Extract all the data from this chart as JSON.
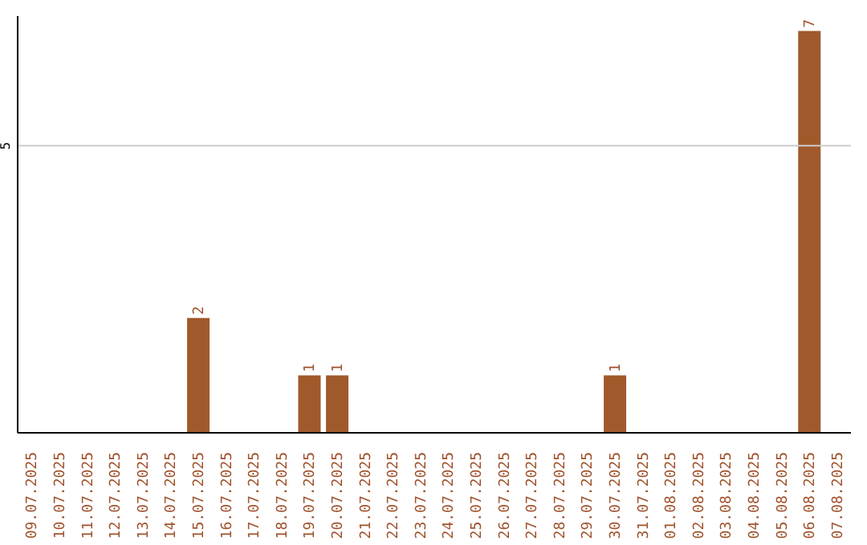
{
  "chart_data": {
    "type": "bar",
    "categories": [
      "09.07.2025",
      "10.07.2025",
      "11.07.2025",
      "12.07.2025",
      "13.07.2025",
      "14.07.2025",
      "15.07.2025",
      "16.07.2025",
      "17.07.2025",
      "18.07.2025",
      "19.07.2025",
      "20.07.2025",
      "21.07.2025",
      "22.07.2025",
      "23.07.2025",
      "24.07.2025",
      "25.07.2025",
      "26.07.2025",
      "27.07.2025",
      "28.07.2025",
      "29.07.2025",
      "30.07.2025",
      "31.07.2025",
      "01.08.2025",
      "02.08.2025",
      "03.08.2025",
      "04.08.2025",
      "05.08.2025",
      "06.08.2025",
      "07.08.2025"
    ],
    "values": [
      0,
      0,
      0,
      0,
      0,
      0,
      2,
      0,
      0,
      0,
      1,
      1,
      0,
      0,
      0,
      0,
      0,
      0,
      0,
      0,
      0,
      1,
      0,
      0,
      0,
      0,
      0,
      0,
      7,
      0
    ],
    "value_labels": [
      null,
      null,
      null,
      null,
      null,
      null,
      "2",
      null,
      null,
      null,
      "1",
      "1",
      null,
      null,
      null,
      null,
      null,
      null,
      null,
      null,
      null,
      "1",
      null,
      null,
      null,
      null,
      null,
      null,
      "7",
      null
    ],
    "color": "#a0592b",
    "ylim": [
      0,
      7.26
    ],
    "yticks": [
      5
    ],
    "grid": "y"
  }
}
